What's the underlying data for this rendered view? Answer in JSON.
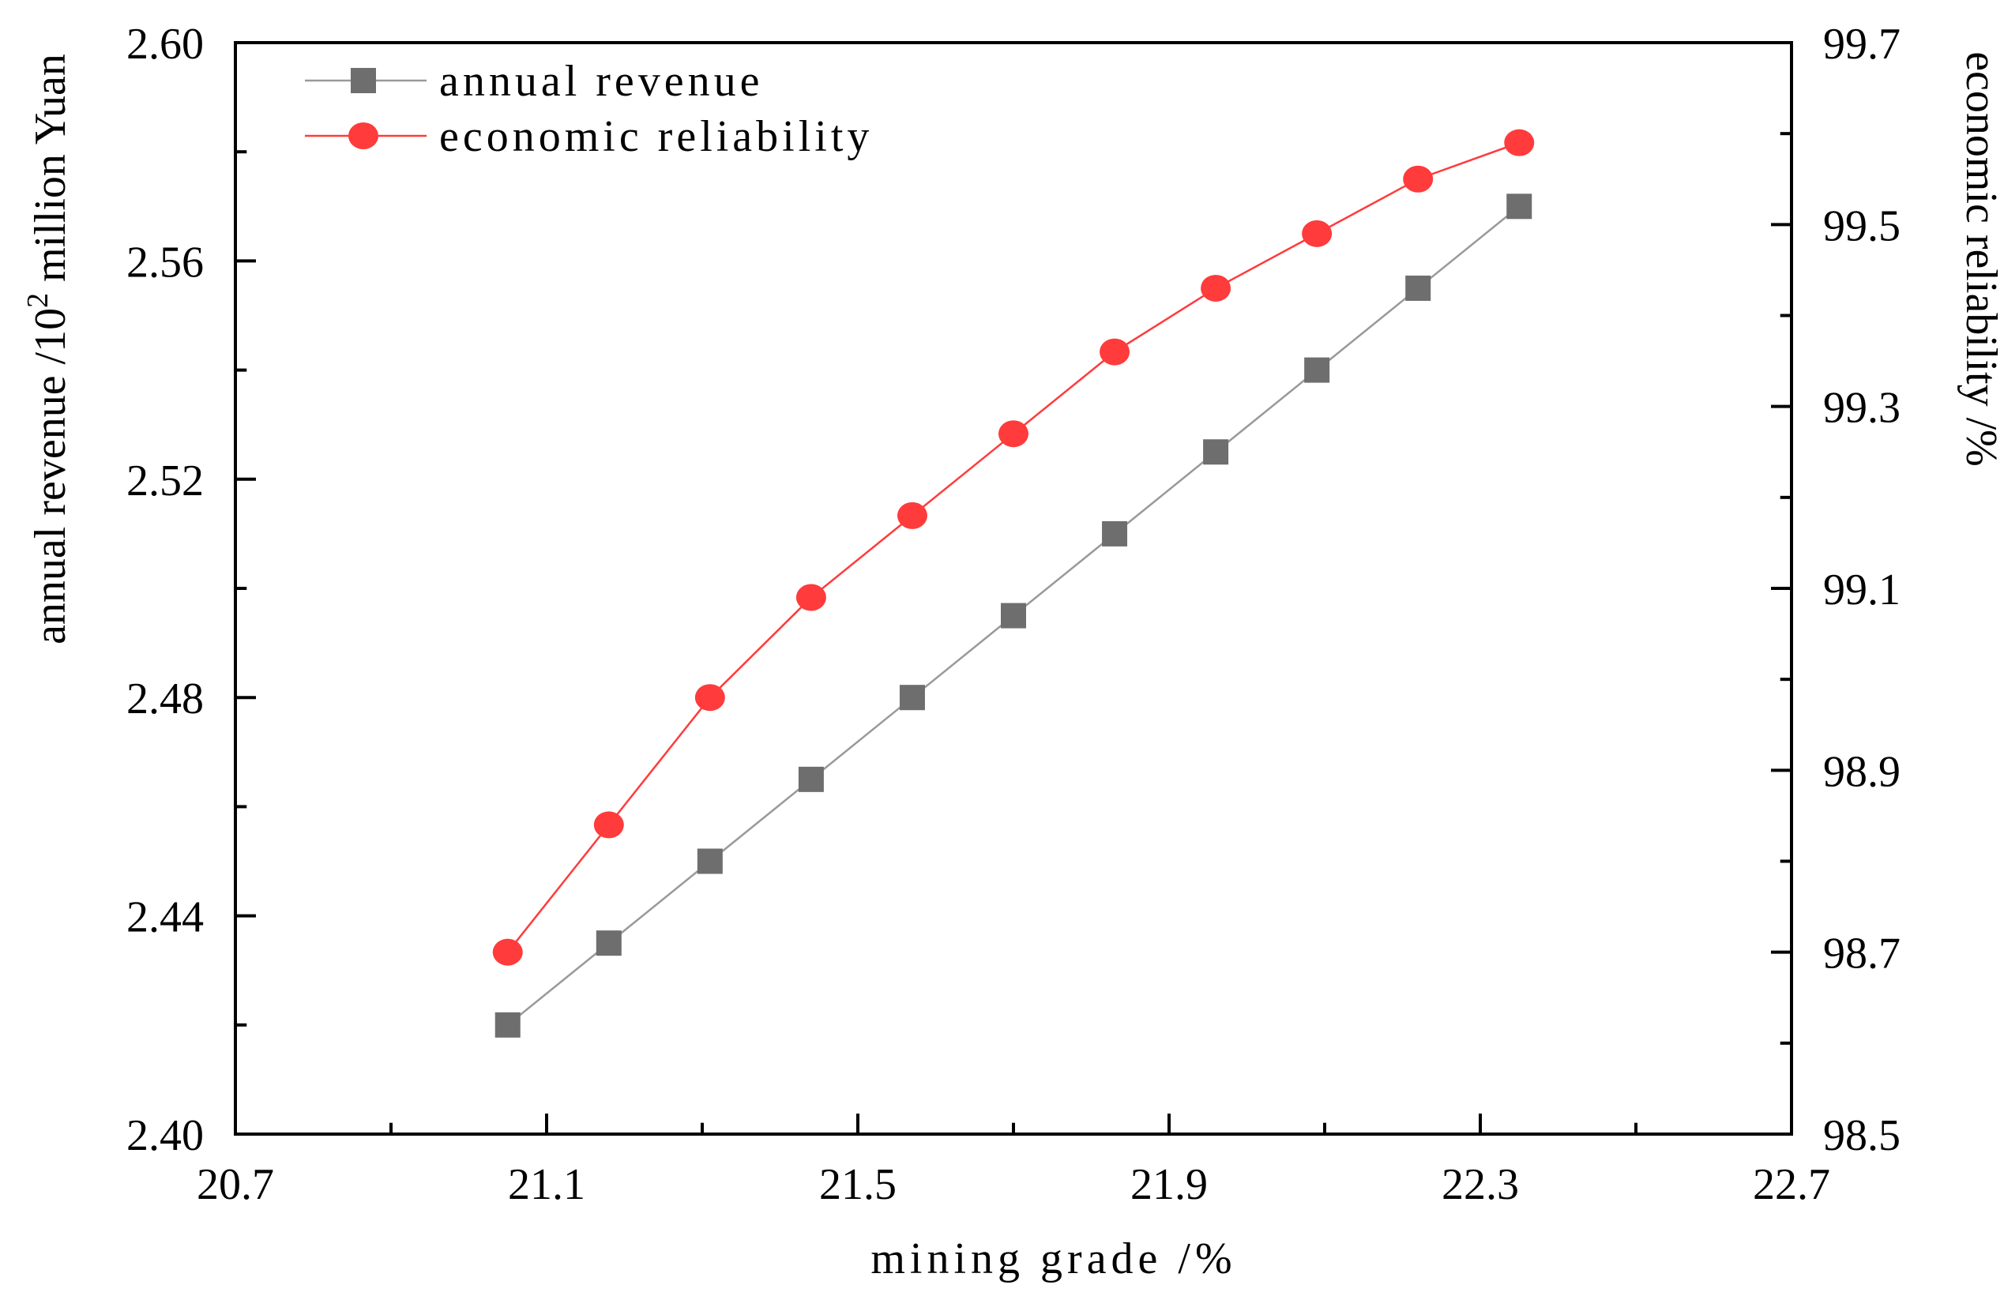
{
  "chart_data": {
    "type": "line",
    "xlabel": "mining grade /%",
    "ylabel_left": {
      "main": "annual revenue /10",
      "sup": "2",
      "tail": " million Yuan"
    },
    "ylabel_right": "economic reliability /%",
    "xlim": [
      20.7,
      22.7
    ],
    "ylim_left": [
      2.4,
      2.6
    ],
    "ylim_right": [
      98.5,
      99.7
    ],
    "x_ticks": [
      "20.7",
      "21.1",
      "21.5",
      "21.9",
      "22.3",
      "22.7"
    ],
    "y_left_ticks": [
      "2.40",
      "2.44",
      "2.48",
      "2.52",
      "2.56",
      "2.60"
    ],
    "y_right_ticks": [
      "98.5",
      "98.7",
      "98.9",
      "99.1",
      "99.3",
      "99.5",
      "99.7"
    ],
    "x": [
      21.05,
      21.18,
      21.31,
      21.44,
      21.57,
      21.7,
      21.83,
      21.96,
      22.09,
      22.22,
      22.35
    ],
    "series": [
      {
        "name": "annual revenue",
        "axis": "left",
        "marker": "square",
        "color": "#6e6e6e",
        "line_color": "#999999",
        "values": [
          2.42,
          2.435,
          2.45,
          2.465,
          2.48,
          2.495,
          2.51,
          2.525,
          2.54,
          2.555,
          2.57
        ]
      },
      {
        "name": "economic reliability",
        "axis": "right",
        "marker": "circle",
        "color": "#ff3b3b",
        "line_color": "#ff3b3b",
        "values": [
          98.7,
          98.84,
          98.98,
          99.09,
          99.18,
          99.27,
          99.36,
          99.43,
          99.49,
          99.55,
          99.59
        ]
      }
    ],
    "legend_position": "top-left"
  }
}
